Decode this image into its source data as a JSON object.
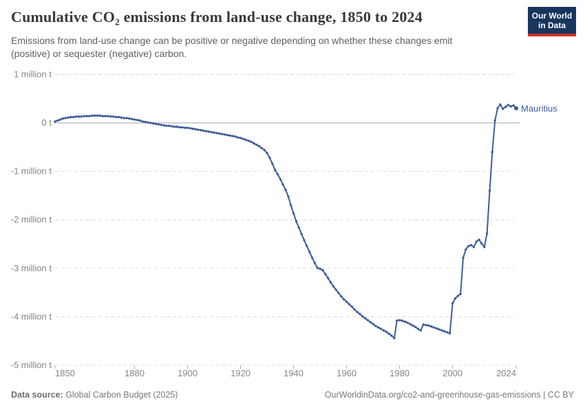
{
  "header": {
    "title": "Cumulative CO₂ emissions from land-use change, 1850 to 2024",
    "subtitle": "Emissions from land-use change can be positive or negative depending on whether these changes emit (positive) or sequester (negative) carbon.",
    "logo": {
      "line1": "Our World",
      "line2": "in Data"
    }
  },
  "footer": {
    "source_label": "Data source:",
    "source_value": " Global Carbon Budget (2025)",
    "right_text": "OurWorldinData.org/co2-and-greenhouse-gas-emissions | CC BY"
  },
  "colors": {
    "line": "#3e5c97",
    "entity_label": "#3e5c97",
    "gridline": "#dcdcdc",
    "zero_line": "#a6a6a6",
    "tick": "#b0b0b0",
    "axis_text": "#858585",
    "logo_bg": "#18355e",
    "logo_red": "#cf2e27"
  },
  "chart_data": {
    "type": "line",
    "title": "Cumulative CO₂ emissions from land-use change, 1850 to 2024",
    "unit": "t",
    "unit_scale": "million t",
    "entity_label": "Mauritius",
    "legend_position": "end-of-line",
    "grid": true,
    "xlim": [
      1850,
      2024
    ],
    "ylim": [
      -5,
      1
    ],
    "x_ticks": [
      1850,
      1880,
      1900,
      1920,
      1940,
      1960,
      1980,
      2000,
      2024
    ],
    "y_ticks": [
      {
        "value": 1,
        "label": "1 million t"
      },
      {
        "value": 0,
        "label": "0 t"
      },
      {
        "value": -1,
        "label": "-1 million t"
      },
      {
        "value": -2,
        "label": "-2 million t"
      },
      {
        "value": -3,
        "label": "-3 million t"
      },
      {
        "value": -4,
        "label": "-4 million t"
      },
      {
        "value": -5,
        "label": "-5 million t"
      }
    ],
    "series": [
      {
        "name": "Mauritius",
        "color": "#3e5c97",
        "x_start_year": 1850,
        "x_step": 1,
        "x": [
          1850,
          1851,
          1852,
          1853,
          1854,
          1855,
          1856,
          1857,
          1858,
          1859,
          1860,
          1861,
          1862,
          1863,
          1864,
          1865,
          1866,
          1867,
          1868,
          1869,
          1870,
          1871,
          1872,
          1873,
          1874,
          1875,
          1876,
          1877,
          1878,
          1879,
          1880,
          1881,
          1882,
          1883,
          1884,
          1885,
          1886,
          1887,
          1888,
          1889,
          1890,
          1891,
          1892,
          1893,
          1894,
          1895,
          1896,
          1897,
          1898,
          1899,
          1900,
          1901,
          1902,
          1903,
          1904,
          1905,
          1906,
          1907,
          1908,
          1909,
          1910,
          1911,
          1912,
          1913,
          1914,
          1915,
          1916,
          1917,
          1918,
          1919,
          1920,
          1921,
          1922,
          1923,
          1924,
          1925,
          1926,
          1927,
          1928,
          1929,
          1930,
          1931,
          1932,
          1933,
          1934,
          1935,
          1936,
          1937,
          1938,
          1939,
          1940,
          1941,
          1942,
          1943,
          1944,
          1945,
          1946,
          1947,
          1948,
          1949,
          1950,
          1951,
          1952,
          1953,
          1954,
          1955,
          1956,
          1957,
          1958,
          1959,
          1960,
          1961,
          1962,
          1963,
          1964,
          1965,
          1966,
          1967,
          1968,
          1969,
          1970,
          1971,
          1972,
          1973,
          1974,
          1975,
          1976,
          1977,
          1978,
          1979,
          1980,
          1981,
          1982,
          1983,
          1984,
          1985,
          1986,
          1987,
          1988,
          1989,
          1990,
          1991,
          1992,
          1993,
          1994,
          1995,
          1996,
          1997,
          1998,
          1999,
          2000,
          2001,
          2002,
          2003,
          2004,
          2005,
          2006,
          2007,
          2008,
          2009,
          2010,
          2011,
          2012,
          2013,
          2014,
          2015,
          2016,
          2017,
          2018,
          2019,
          2020,
          2021,
          2022,
          2023,
          2024
        ],
        "values_million_t": [
          0.03,
          0.05,
          0.07,
          0.09,
          0.1,
          0.11,
          0.12,
          0.12,
          0.13,
          0.13,
          0.13,
          0.14,
          0.14,
          0.14,
          0.15,
          0.15,
          0.15,
          0.15,
          0.14,
          0.14,
          0.14,
          0.13,
          0.13,
          0.12,
          0.12,
          0.11,
          0.1,
          0.1,
          0.09,
          0.08,
          0.07,
          0.06,
          0.05,
          0.03,
          0.02,
          0.01,
          0.0,
          -0.01,
          -0.02,
          -0.03,
          -0.04,
          -0.05,
          -0.06,
          -0.06,
          -0.07,
          -0.08,
          -0.08,
          -0.09,
          -0.09,
          -0.1,
          -0.1,
          -0.11,
          -0.12,
          -0.13,
          -0.14,
          -0.15,
          -0.16,
          -0.17,
          -0.18,
          -0.19,
          -0.2,
          -0.21,
          -0.22,
          -0.23,
          -0.24,
          -0.25,
          -0.26,
          -0.27,
          -0.28,
          -0.3,
          -0.31,
          -0.33,
          -0.35,
          -0.37,
          -0.39,
          -0.42,
          -0.45,
          -0.48,
          -0.52,
          -0.56,
          -0.62,
          -0.72,
          -0.84,
          -0.97,
          -1.06,
          -1.16,
          -1.27,
          -1.38,
          -1.52,
          -1.7,
          -1.87,
          -2.03,
          -2.16,
          -2.29,
          -2.42,
          -2.54,
          -2.66,
          -2.78,
          -2.89,
          -2.99,
          -3.01,
          -3.04,
          -3.12,
          -3.2,
          -3.29,
          -3.37,
          -3.44,
          -3.51,
          -3.58,
          -3.64,
          -3.69,
          -3.74,
          -3.79,
          -3.85,
          -3.9,
          -3.94,
          -3.99,
          -4.03,
          -4.07,
          -4.11,
          -4.15,
          -4.19,
          -4.22,
          -4.25,
          -4.28,
          -4.31,
          -4.35,
          -4.39,
          -4.44,
          -4.08,
          -4.07,
          -4.08,
          -4.1,
          -4.12,
          -4.15,
          -4.18,
          -4.21,
          -4.25,
          -4.28,
          -4.16,
          -4.17,
          -4.18,
          -4.2,
          -4.22,
          -4.24,
          -4.26,
          -4.28,
          -4.3,
          -4.32,
          -4.34,
          -3.72,
          -3.62,
          -3.57,
          -3.53,
          -2.78,
          -2.61,
          -2.54,
          -2.52,
          -2.56,
          -2.45,
          -2.41,
          -2.49,
          -2.56,
          -2.28,
          -1.4,
          -0.6,
          0.05,
          0.3,
          0.38,
          0.29,
          0.33,
          0.37,
          0.34,
          0.36,
          0.3
        ]
      }
    ]
  }
}
